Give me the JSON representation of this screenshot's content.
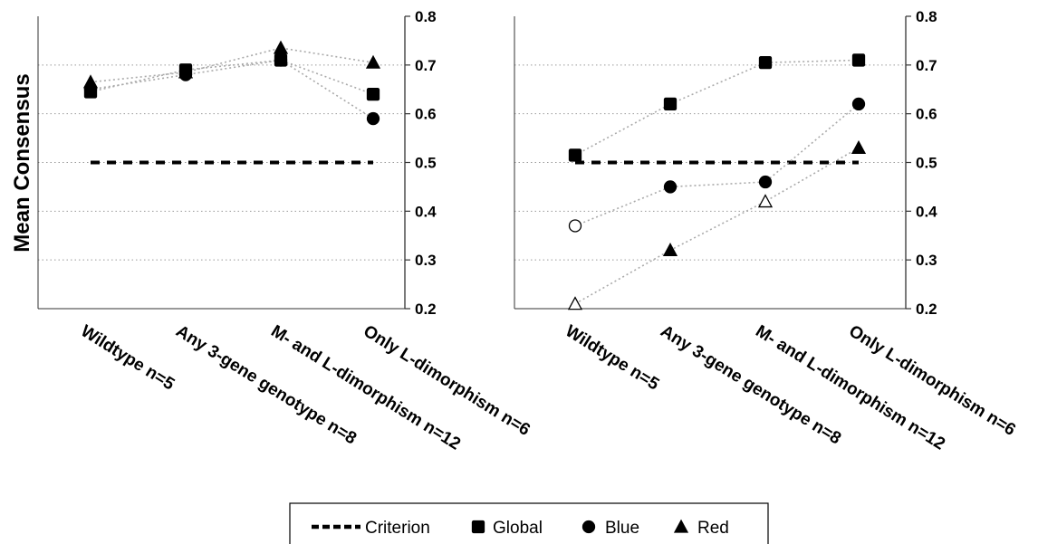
{
  "chart_data": [
    {
      "type": "scatter",
      "ylabel": "Mean Consensus",
      "ylim": [
        0.2,
        0.8
      ],
      "yticks": [
        "0.2",
        "0.3",
        "0.4",
        "0.5",
        "0.6",
        "0.7",
        "0.8"
      ],
      "y_axis_side": "right",
      "grid": "horizontal dotted",
      "categories": [
        "Wildtype n=5",
        "Any 3-gene genotype n=8",
        "M- and L-dimorphism n=12",
        "Only L-dimorphism n=6"
      ],
      "criterion": 0.5,
      "series": [
        {
          "name": "Global",
          "marker": "square",
          "values": [
            0.645,
            0.69,
            0.71,
            0.64
          ],
          "filled": [
            true,
            true,
            true,
            true
          ]
        },
        {
          "name": "Blue",
          "marker": "circle",
          "values": [
            0.65,
            0.68,
            0.71,
            0.59
          ],
          "filled": [
            true,
            true,
            true,
            true
          ]
        },
        {
          "name": "Red",
          "marker": "triangle",
          "values": [
            0.665,
            0.685,
            0.735,
            0.705
          ],
          "filled": [
            true,
            true,
            true,
            true
          ]
        }
      ]
    },
    {
      "type": "scatter",
      "ylabel": "",
      "ylim": [
        0.2,
        0.8
      ],
      "yticks": [
        "0.2",
        "0.3",
        "0.4",
        "0.5",
        "0.6",
        "0.7",
        "0.8"
      ],
      "y_axis_side": "right",
      "grid": "horizontal dotted",
      "categories": [
        "Wildtype n=5",
        "Any 3-gene genotype n=8",
        "M- and L-dimorphism n=12",
        "Only L-dimorphism n=6"
      ],
      "criterion": 0.5,
      "series": [
        {
          "name": "Global",
          "marker": "square",
          "values": [
            0.515,
            0.62,
            0.705,
            0.71
          ],
          "filled": [
            true,
            true,
            true,
            true
          ]
        },
        {
          "name": "Blue",
          "marker": "circle",
          "values": [
            0.37,
            0.45,
            0.46,
            0.62
          ],
          "filled": [
            false,
            true,
            true,
            true
          ]
        },
        {
          "name": "Red",
          "marker": "triangle",
          "values": [
            0.21,
            0.32,
            0.42,
            0.53
          ],
          "filled": [
            false,
            true,
            false,
            true
          ]
        }
      ]
    }
  ],
  "legend": {
    "position": "bottom-center",
    "items": [
      {
        "label": "Criterion",
        "marker": "dash"
      },
      {
        "label": "Global",
        "marker": "square"
      },
      {
        "label": "Blue",
        "marker": "circle"
      },
      {
        "label": "Red",
        "marker": "triangle"
      }
    ]
  }
}
